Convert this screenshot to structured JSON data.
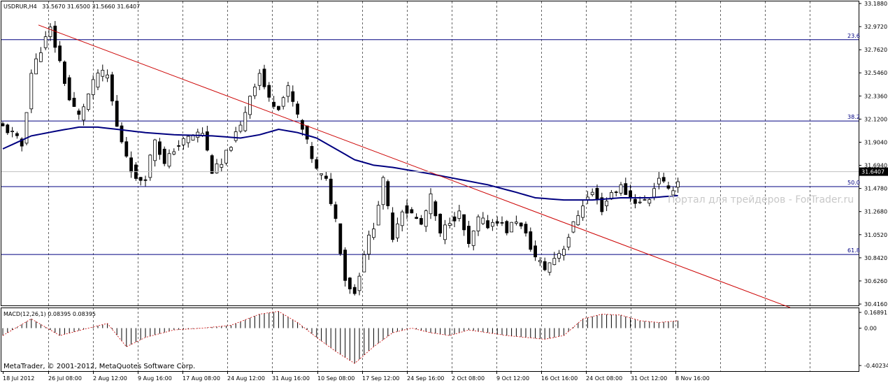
{
  "header": {
    "symbol": "USDRUR,H4",
    "ohlc": "31.5670 31.6500 31.5660 31.6407"
  },
  "macd": {
    "label": "MACD(12,26,1) 0.08395 0.08395"
  },
  "watermark": "Портал для трейдеров - ForTrader.ru",
  "copyright": "MetaTrader, © 2001-2012, MetaQuotes Software Corp.",
  "price_axis": {
    "labels": [
      "33.1880",
      "32.9720",
      "32.7620",
      "32.5460",
      "32.3360",
      "32.1200",
      "31.9040",
      "31.6940",
      "31.4780",
      "31.2680",
      "31.0520",
      "30.8420",
      "30.6260",
      "30.4160"
    ],
    "current_price": "31.6407"
  },
  "macd_axis": {
    "labels": [
      "0.16891",
      "0.00",
      "-0.40234"
    ]
  },
  "time_axis": {
    "labels": [
      "18 Jul 2012",
      "26 Jul 08:00",
      "2 Aug 12:00",
      "9 Aug 16:00",
      "17 Aug 08:00",
      "24 Aug 12:00",
      "31 Aug 16:00",
      "10 Sep 08:00",
      "17 Sep 12:00",
      "24 Sep 16:00",
      "2 Oct 08:00",
      "9 Oct 12:00",
      "16 Oct 16:00",
      "24 Oct 08:00",
      "31 Oct 12:00",
      "8 Nov 16:00"
    ]
  },
  "fibo_levels": [
    {
      "label": "23.6",
      "price": 32.855
    },
    {
      "label": "38.2",
      "price": 32.107
    },
    {
      "label": "50.0",
      "price": 31.503
    },
    {
      "label": "61.8",
      "price": 30.878
    }
  ],
  "colors": {
    "bull": "#000000",
    "bear": "#000000",
    "ma": "#000080",
    "trend": "#cc0000",
    "fibo": "#000080",
    "grid": "#000000",
    "current_line": "#c0c0c0"
  },
  "chart_data": {
    "type": "candlestick",
    "symbol": "USDRUR",
    "timeframe": "H4",
    "ylim": [
      30.416,
      33.188
    ],
    "macd_ylim": [
      -0.40234,
      0.16891
    ],
    "trendline": {
      "from": [
        "26 Jul 08:00",
        32.99
      ],
      "to": [
        "after 8 Nov 16:00",
        30.39
      ]
    },
    "close_path": [
      [
        0,
        32.05
      ],
      [
        2,
        31.99
      ],
      [
        4,
        31.88
      ],
      [
        6,
        32.55
      ],
      [
        8,
        32.77
      ],
      [
        10,
        32.95
      ],
      [
        12,
        32.65
      ],
      [
        14,
        32.3
      ],
      [
        16,
        32.15
      ],
      [
        18,
        32.35
      ],
      [
        20,
        32.55
      ],
      [
        22,
        32.52
      ],
      [
        24,
        32.05
      ],
      [
        26,
        31.8
      ],
      [
        28,
        31.55
      ],
      [
        30,
        31.6
      ],
      [
        32,
        31.95
      ],
      [
        34,
        31.7
      ],
      [
        36,
        31.85
      ],
      [
        38,
        31.92
      ],
      [
        40,
        31.98
      ],
      [
        42,
        32.0
      ],
      [
        44,
        31.65
      ],
      [
        46,
        31.7
      ],
      [
        48,
        31.9
      ],
      [
        50,
        32.05
      ],
      [
        52,
        32.35
      ],
      [
        54,
        32.55
      ],
      [
        56,
        32.3
      ],
      [
        58,
        32.25
      ],
      [
        60,
        32.4
      ],
      [
        62,
        32.15
      ],
      [
        64,
        31.9
      ],
      [
        66,
        31.65
      ],
      [
        68,
        31.55
      ],
      [
        70,
        31.2
      ],
      [
        72,
        30.65
      ],
      [
        74,
        30.52
      ],
      [
        76,
        30.9
      ],
      [
        78,
        31.15
      ],
      [
        80,
        31.55
      ],
      [
        82,
        31.05
      ],
      [
        84,
        31.3
      ],
      [
        86,
        31.25
      ],
      [
        88,
        31.15
      ],
      [
        90,
        31.4
      ],
      [
        92,
        31.05
      ],
      [
        94,
        31.2
      ],
      [
        96,
        31.25
      ],
      [
        98,
        30.95
      ],
      [
        100,
        31.2
      ],
      [
        102,
        31.15
      ],
      [
        104,
        31.2
      ],
      [
        106,
        31.1
      ],
      [
        108,
        31.2
      ],
      [
        110,
        31.05
      ],
      [
        112,
        30.85
      ],
      [
        114,
        30.75
      ],
      [
        116,
        30.85
      ],
      [
        118,
        30.95
      ],
      [
        120,
        31.15
      ],
      [
        122,
        31.35
      ],
      [
        124,
        31.45
      ],
      [
        126,
        31.3
      ],
      [
        128,
        31.45
      ],
      [
        130,
        31.5
      ],
      [
        132,
        31.4
      ],
      [
        134,
        31.35
      ],
      [
        136,
        31.4
      ],
      [
        138,
        31.6
      ],
      [
        140,
        31.45
      ],
      [
        142,
        31.55
      ]
    ],
    "ma_path": [
      [
        0,
        31.85
      ],
      [
        6,
        31.97
      ],
      [
        12,
        32.02
      ],
      [
        16,
        32.05
      ],
      [
        20,
        32.05
      ],
      [
        24,
        32.03
      ],
      [
        30,
        32.0
      ],
      [
        36,
        31.98
      ],
      [
        44,
        31.97
      ],
      [
        50,
        31.95
      ],
      [
        54,
        31.98
      ],
      [
        58,
        32.03
      ],
      [
        62,
        32.0
      ],
      [
        66,
        31.95
      ],
      [
        70,
        31.85
      ],
      [
        74,
        31.75
      ],
      [
        78,
        31.7
      ],
      [
        82,
        31.68
      ],
      [
        86,
        31.65
      ],
      [
        90,
        31.62
      ],
      [
        96,
        31.57
      ],
      [
        102,
        31.52
      ],
      [
        108,
        31.45
      ],
      [
        112,
        31.4
      ],
      [
        118,
        31.38
      ],
      [
        124,
        31.38
      ],
      [
        130,
        31.4
      ],
      [
        136,
        31.4
      ],
      [
        142,
        31.42
      ]
    ],
    "macd_path": [
      [
        0,
        -0.08
      ],
      [
        6,
        0.1
      ],
      [
        12,
        -0.08
      ],
      [
        18,
        0.0
      ],
      [
        22,
        0.05
      ],
      [
        26,
        -0.2
      ],
      [
        30,
        -0.1
      ],
      [
        36,
        -0.02
      ],
      [
        42,
        0.0
      ],
      [
        48,
        0.03
      ],
      [
        54,
        0.15
      ],
      [
        58,
        0.18
      ],
      [
        62,
        0.06
      ],
      [
        66,
        -0.1
      ],
      [
        70,
        -0.25
      ],
      [
        74,
        -0.38
      ],
      [
        78,
        -0.2
      ],
      [
        82,
        -0.05
      ],
      [
        86,
        0.0
      ],
      [
        90,
        -0.05
      ],
      [
        94,
        -0.08
      ],
      [
        98,
        -0.02
      ],
      [
        102,
        -0.05
      ],
      [
        106,
        -0.08
      ],
      [
        110,
        -0.1
      ],
      [
        114,
        -0.12
      ],
      [
        118,
        -0.08
      ],
      [
        122,
        0.1
      ],
      [
        126,
        0.15
      ],
      [
        130,
        0.14
      ],
      [
        134,
        0.08
      ],
      [
        138,
        0.06
      ],
      [
        142,
        0.08
      ]
    ]
  }
}
